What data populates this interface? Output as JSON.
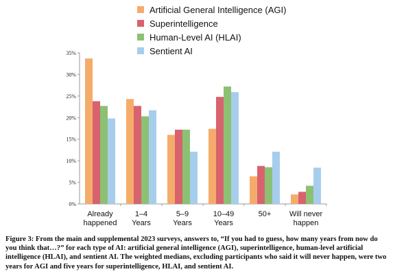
{
  "chart_data": {
    "type": "bar",
    "categories": [
      [
        "Already",
        "happened"
      ],
      [
        "1–4",
        "Years"
      ],
      [
        "5–9",
        "Years"
      ],
      [
        "10–49",
        "Years"
      ],
      [
        "50+"
      ],
      [
        "Will never",
        "happen"
      ]
    ],
    "series": [
      {
        "name": "Artificial General Intelligence (AGI)",
        "color": "#f5ac6b",
        "values": [
          33.7,
          24.3,
          16.0,
          17.4,
          6.4,
          2.2
        ]
      },
      {
        "name": "Superintelligence",
        "color": "#d9626f",
        "values": [
          23.8,
          22.7,
          17.2,
          24.8,
          8.8,
          2.8
        ]
      },
      {
        "name": "Human-Level AI (HLAI)",
        "color": "#8cc173",
        "values": [
          22.7,
          20.3,
          17.2,
          27.2,
          8.5,
          4.2
        ]
      },
      {
        "name": "Sentient AI",
        "color": "#a7cdec",
        "values": [
          19.8,
          21.7,
          12.1,
          25.9,
          12.1,
          8.4
        ]
      }
    ],
    "ylim": [
      0,
      35
    ],
    "yticks": [
      "0%",
      "5%",
      "10%",
      "15%",
      "20%",
      "25%",
      "30%",
      "35%"
    ],
    "ytick_values": [
      0,
      5,
      10,
      15,
      20,
      25,
      30,
      35
    ],
    "grid": false,
    "legend_position": "top"
  },
  "caption": "Figure 3: From the main and supplemental 2023 surveys, answers to, “If you had to guess, how many years from now do you think that…?” for each type of AI: artificial general intelligence (AGI), superintelligence, human-level artificial intelligence (HLAI), and sentient AI. The weighted medians, excluding participants who said it will never happen, were two years for AGI and five years for superintelligence, HLAI, and sentient AI."
}
